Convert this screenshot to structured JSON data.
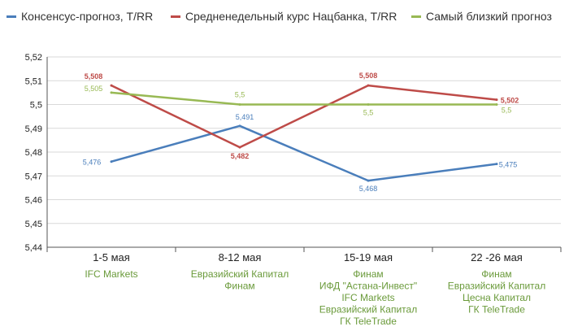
{
  "legend": [
    {
      "name": "Консенсус-прогноз, Т/RR",
      "color": "#4a7ebb"
    },
    {
      "name": "Средненедельный курс Нацбанка, Т/RR",
      "color": "#be4b48"
    },
    {
      "name": "Самый близкий прогноз",
      "color": "#98b954"
    }
  ],
  "chart_data": {
    "type": "line",
    "categories": [
      "1-5 мая",
      "8-12 мая",
      "15-19 мая",
      "22 -26 мая"
    ],
    "category_sublabels": [
      [
        "IFC Markets"
      ],
      [
        "Евразийский Капитал",
        "Финам"
      ],
      [
        "Финам",
        "ИФД \"Астана-Инвест\"",
        "IFC Markets",
        "Евразийский Капитал",
        "ГК TeleTrade"
      ],
      [
        "Финам",
        "Евразийский Капитал",
        "Цесна Капитал",
        "ГК TeleTrade"
      ]
    ],
    "series": [
      {
        "name": "Консенсус-прогноз, Т/RR",
        "color": "#4a7ebb",
        "values": [
          5.476,
          5.491,
          5.468,
          5.475
        ],
        "labels": [
          "5,476",
          "5,491",
          "5,468",
          "5,475"
        ]
      },
      {
        "name": "Средненедельный курс Нацбанка, Т/RR",
        "color": "#be4b48",
        "values": [
          5.508,
          5.482,
          5.508,
          5.502
        ],
        "labels": [
          "5,508",
          "5,482",
          "5,508",
          "5,502"
        ]
      },
      {
        "name": "Самый близкий прогноз",
        "color": "#98b954",
        "values": [
          5.505,
          5.5,
          5.5,
          5.5
        ],
        "labels": [
          "5,505",
          "5,5",
          "5,5",
          "5,5"
        ]
      }
    ],
    "ylim": [
      5.44,
      5.52
    ],
    "yticks": [
      "5,44",
      "5,45",
      "5,46",
      "5,47",
      "5,48",
      "5,49",
      "5,5",
      "5,51",
      "5,52"
    ],
    "grid": true,
    "legend_position": "top"
  }
}
